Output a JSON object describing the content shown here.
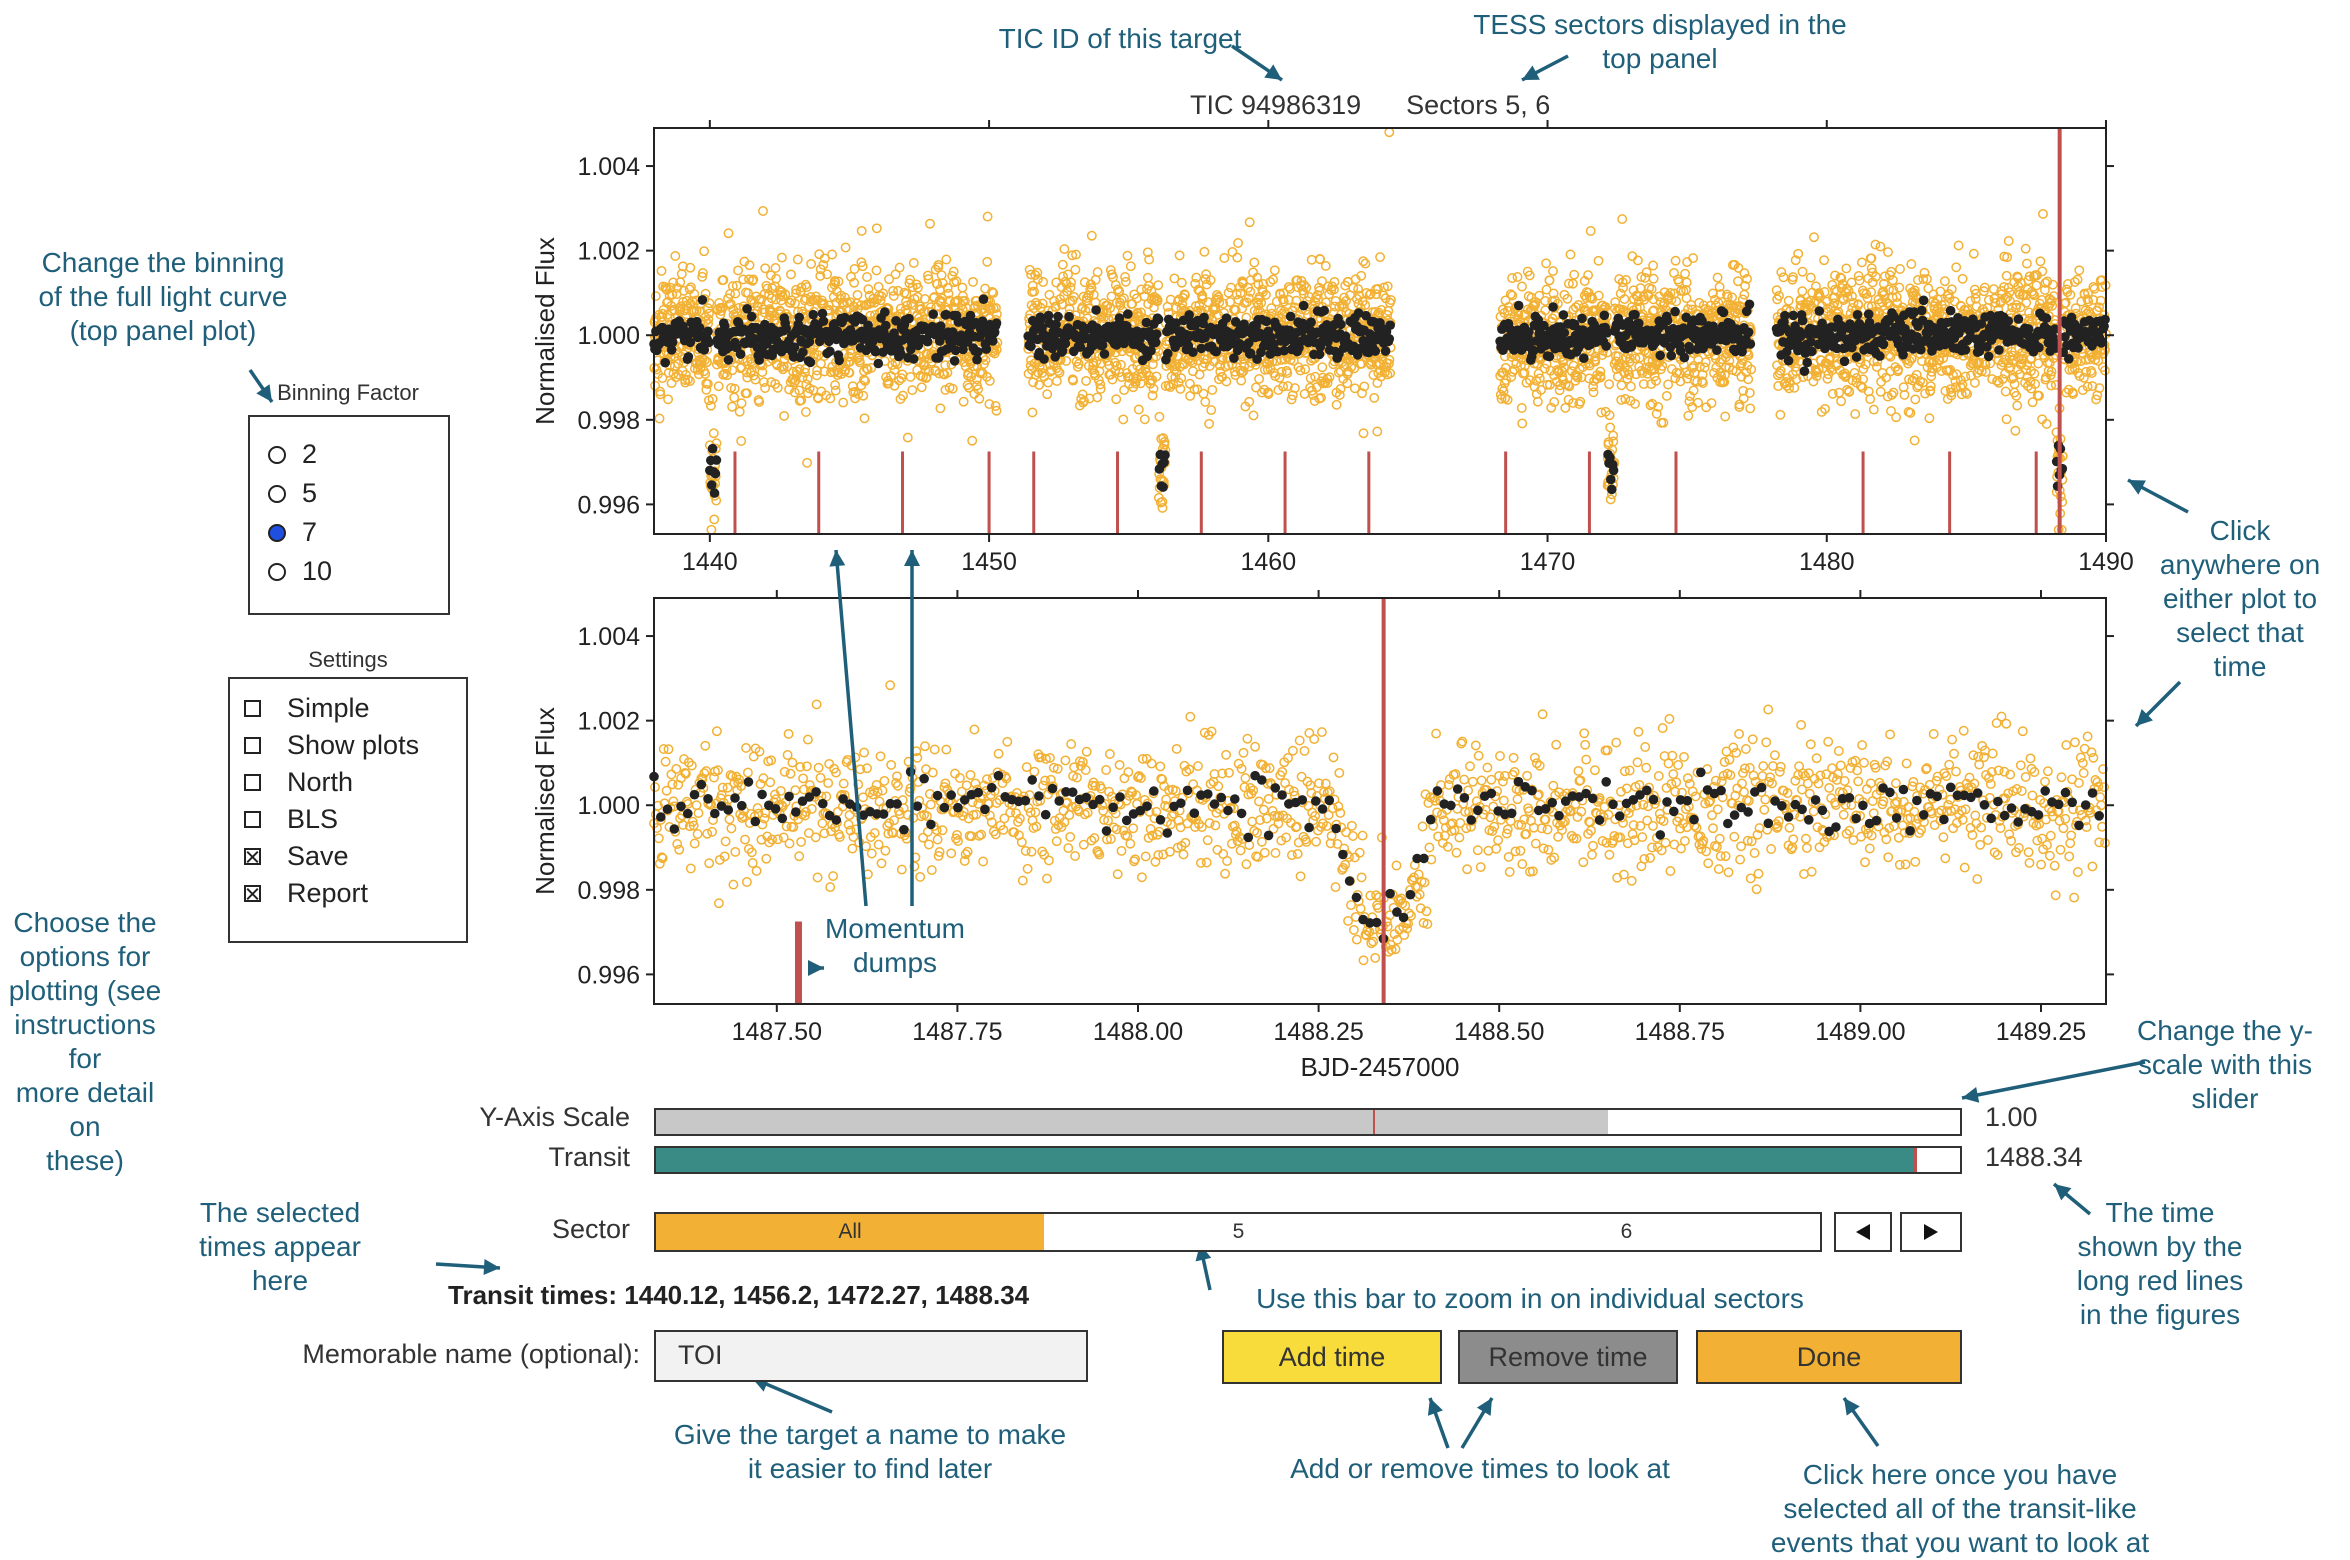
{
  "header": {
    "tic_id": "TIC 94986319",
    "sectors": "Sectors 5, 6"
  },
  "annotations": {
    "tic_note": "TIC ID of this target",
    "sectors_note_1": "TESS sectors displayed in the",
    "sectors_note_2": "top panel",
    "binning_note_1": "Change the binning",
    "binning_note_2": "of the full light curve",
    "binning_note_3": "(top panel plot)",
    "click_note_1": "Click",
    "click_note_2": "anywhere on",
    "click_note_3": "either plot to",
    "click_note_4": "select that",
    "click_note_5": "time",
    "options_note_1": "Choose the",
    "options_note_2": "options for",
    "options_note_3": "plotting (see",
    "options_note_4": "instructions for",
    "options_note_5": "more detail on",
    "options_note_6": "these)",
    "momentum_note_1": "Momentum",
    "momentum_note_2": "dumps",
    "yscale_note_1": "Change the y-",
    "yscale_note_2": "scale with this",
    "yscale_note_3": "slider",
    "selected_note_1": "The selected",
    "selected_note_2": "times appear",
    "selected_note_3": "here",
    "time_note_1": "The time",
    "time_note_2": "shown by the",
    "time_note_3": "long red lines",
    "time_note_4": "in the figures",
    "zoom_note": "Use this bar to zoom in on individual sectors",
    "name_note_1": "Give the target a name to make",
    "name_note_2": "it easier to find later",
    "addremove_note": "Add or remove times to look at",
    "done_note_1": "Click here once you have",
    "done_note_2": "selected all of the transit-like",
    "done_note_3": "events that you want to look at"
  },
  "binning": {
    "title": "Binning Factor",
    "options": [
      {
        "label": "2",
        "selected": false
      },
      {
        "label": "5",
        "selected": false
      },
      {
        "label": "7",
        "selected": true
      },
      {
        "label": "10",
        "selected": false
      }
    ]
  },
  "settings": {
    "title": "Settings",
    "options": [
      {
        "label": "Simple",
        "checked": false
      },
      {
        "label": "Show plots",
        "checked": false
      },
      {
        "label": "North",
        "checked": false
      },
      {
        "label": "BLS",
        "checked": false
      },
      {
        "label": "Save",
        "checked": true
      },
      {
        "label": "Report",
        "checked": true
      }
    ]
  },
  "colors": {
    "raw": "#f2b134",
    "binned": "#222222",
    "marker": "#c0504d",
    "teal": "#3a8a86",
    "sector_fill": "#f2b134",
    "add": "#f7dc3c",
    "remove": "#8c8c8c",
    "done": "#f2b134"
  },
  "controls": {
    "yaxis_label": "Y-Axis Scale",
    "yaxis_value": "1.00",
    "yaxis_fraction": 0.55,
    "transit_label": "Transit",
    "transit_value": "1488.34",
    "transit_fraction": 0.965,
    "sector_label": "Sector",
    "sector_all": "All",
    "sector_5": "5",
    "sector_6": "6",
    "prev_icon": "triangle-left-icon",
    "next_icon": "triangle-right-icon",
    "transit_times_label": "Transit times:",
    "transit_times": "1440.12, 1456.2, 1472.27, 1488.34",
    "name_label": "Memorable name (optional):",
    "name_value": "TOI",
    "add_label": "Add time",
    "remove_label": "Remove time",
    "done_label": "Done"
  },
  "chart_data": [
    {
      "type": "scatter",
      "ylabel": "Normalised Flux",
      "xlim": [
        1438,
        1490
      ],
      "ylim": [
        0.9953,
        1.0049
      ],
      "xticks": [
        "1440",
        "1450",
        "1460",
        "1470",
        "1480",
        "1490"
      ],
      "yticks": [
        "0.996",
        "0.998",
        "1.000",
        "1.002",
        "1.004"
      ],
      "data_segments": [
        [
          1438,
          1450.3
        ],
        [
          1451.4,
          1464.4
        ],
        [
          1468.3,
          1477.3
        ],
        [
          1478.2,
          1490
        ]
      ],
      "dips": [
        1440.12,
        1456.2,
        1472.27,
        1488.34
      ],
      "momentum_dumps": [
        1440.9,
        1443.9,
        1446.9,
        1450.0,
        1451.6,
        1454.6,
        1457.6,
        1460.6,
        1463.6,
        1468.5,
        1471.5,
        1474.6,
        1481.3,
        1484.4,
        1487.5
      ],
      "selected_time": 1488.34
    },
    {
      "type": "scatter",
      "ylabel": "Normalised Flux",
      "xlabel": "BJD-2457000",
      "xlim": [
        1487.33,
        1489.34
      ],
      "ylim": [
        0.9953,
        1.0049
      ],
      "xticks": [
        "1487.50",
        "1487.75",
        "1488.00",
        "1488.25",
        "1488.50",
        "1488.75",
        "1489.00",
        "1489.25"
      ],
      "yticks": [
        "0.996",
        "0.998",
        "1.000",
        "1.002",
        "1.004"
      ],
      "transit_center": 1488.34,
      "transit_depth": 0.0028,
      "momentum_dumps": [
        1487.53
      ],
      "selected_time": 1488.34
    }
  ]
}
